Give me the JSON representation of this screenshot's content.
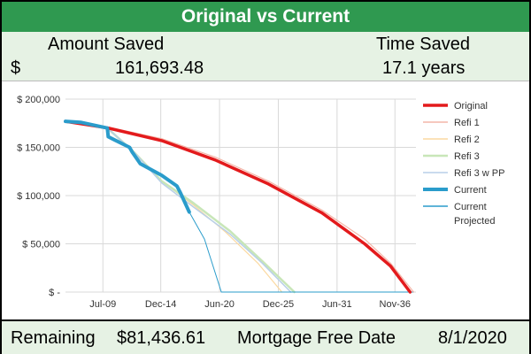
{
  "title": "Original vs Current",
  "stats": {
    "amount_label": "Amount Saved",
    "currency_symbol": "$",
    "amount_value": "161,693.48",
    "time_label": "Time Saved",
    "time_value": "17.1 years"
  },
  "footer": {
    "remaining_label": "Remaining",
    "remaining_value": "$81,436.61",
    "free_date_label": "Mortgage Free Date",
    "free_date_value": "8/1/2020"
  },
  "colors": {
    "title_bg": "#2f9950",
    "panel_bg": "#e6f2e4",
    "Original": "#e31a1c",
    "Refi 1": "#f4b6a8",
    "Refi 2": "#fbd9a0",
    "Refi 3": "#c8e6b8",
    "Refi 3 w PP": "#b8cfe8",
    "Current": "#2a9ccb",
    "Current Projected": "#2a9ccb"
  },
  "chart_data": {
    "type": "line",
    "x_tick_labels": [
      "Jul-09",
      "Dec-14",
      "Jun-20",
      "Dec-25",
      "Jun-31",
      "Nov-36"
    ],
    "y_tick_labels": [
      "$ 200,000",
      "$ 150,000",
      "$ 100,000",
      "$ 50,000",
      "$ -"
    ],
    "ylim": [
      0,
      200000
    ],
    "grid": true,
    "legend_position": "right",
    "series": [
      {
        "name": "Original",
        "points": [
          [
            "2006-01",
            177000
          ],
          [
            "2010-01",
            170000
          ],
          [
            "2015-01",
            157000
          ],
          [
            "2020-01",
            137000
          ],
          [
            "2025-01",
            112000
          ],
          [
            "2030-01",
            82000
          ],
          [
            "2034-01",
            50000
          ],
          [
            "2036-06",
            27000
          ],
          [
            "2038-04",
            0
          ]
        ]
      },
      {
        "name": "Refi 1",
        "points": [
          [
            "2006-01",
            177000
          ],
          [
            "2010-01",
            171000
          ],
          [
            "2015-01",
            159000
          ],
          [
            "2020-01",
            140000
          ],
          [
            "2025-01",
            115000
          ],
          [
            "2030-01",
            85000
          ],
          [
            "2034-01",
            55000
          ],
          [
            "2036-06",
            30000
          ],
          [
            "2038-08",
            0
          ]
        ]
      },
      {
        "name": "Refi 2",
        "points": [
          [
            "2006-01",
            177000
          ],
          [
            "2009-12",
            170000
          ],
          [
            "2012-06",
            145000
          ],
          [
            "2015-01",
            115000
          ],
          [
            "2018-01",
            90000
          ],
          [
            "2021-01",
            62000
          ],
          [
            "2024-01",
            30000
          ],
          [
            "2026-04",
            0
          ]
        ]
      },
      {
        "name": "Refi 3",
        "points": [
          [
            "2006-01",
            177000
          ],
          [
            "2009-12",
            170000
          ],
          [
            "2012-06",
            145000
          ],
          [
            "2015-01",
            115000
          ],
          [
            "2018-01",
            92000
          ],
          [
            "2021-06",
            63000
          ],
          [
            "2024-06",
            32000
          ],
          [
            "2027-06",
            0
          ]
        ]
      },
      {
        "name": "Refi 3 w PP",
        "points": [
          [
            "2006-01",
            177000
          ],
          [
            "2009-12",
            170000
          ],
          [
            "2012-06",
            145000
          ],
          [
            "2015-01",
            113000
          ],
          [
            "2018-01",
            88000
          ],
          [
            "2021-06",
            60000
          ],
          [
            "2024-06",
            30000
          ],
          [
            "2027-02",
            0
          ]
        ]
      },
      {
        "name": "Current",
        "points": [
          [
            "2006-01",
            177000
          ],
          [
            "2007-06",
            176000
          ],
          [
            "2009-12",
            170000
          ],
          [
            "2010-01",
            161000
          ],
          [
            "2012-01",
            150000
          ],
          [
            "2012-04",
            145000
          ],
          [
            "2013-01",
            133000
          ],
          [
            "2015-01",
            121000
          ],
          [
            "2016-06",
            110000
          ],
          [
            "2016-10",
            103000
          ],
          [
            "2017-08",
            83000
          ]
        ]
      },
      {
        "name": "Current Projected",
        "points": [
          [
            "2017-08",
            83000
          ],
          [
            "2019-01",
            55000
          ],
          [
            "2020-08",
            0
          ],
          [
            "2038-08",
            0
          ]
        ]
      }
    ]
  }
}
